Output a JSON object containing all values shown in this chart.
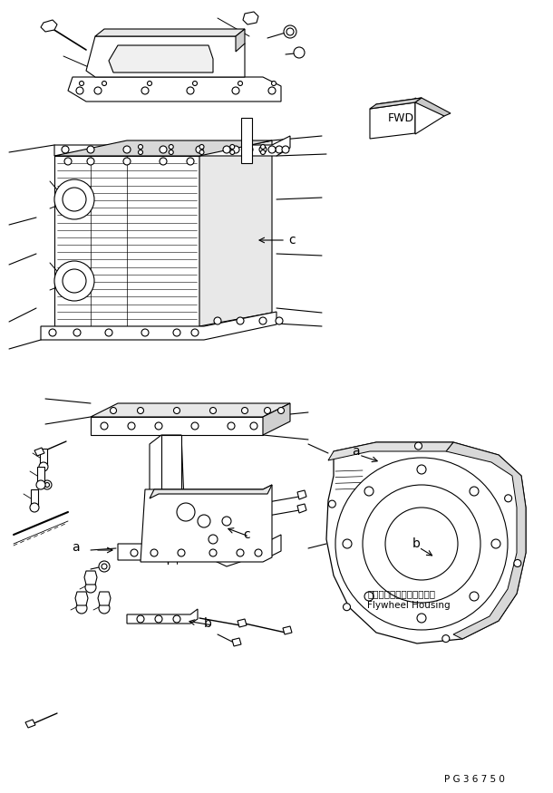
{
  "bg_color": "#ffffff",
  "line_color": "#000000",
  "fig_width": 6.1,
  "fig_height": 8.75,
  "dpi": 100,
  "fwd_text": "FWD",
  "label_a": "a",
  "label_b": "b",
  "label_c": "c",
  "flywheel_jp": "フライホイールハウジング",
  "flywheel_en": "Flywheel Housing",
  "part_code": "P G 3 6 7 5 0"
}
